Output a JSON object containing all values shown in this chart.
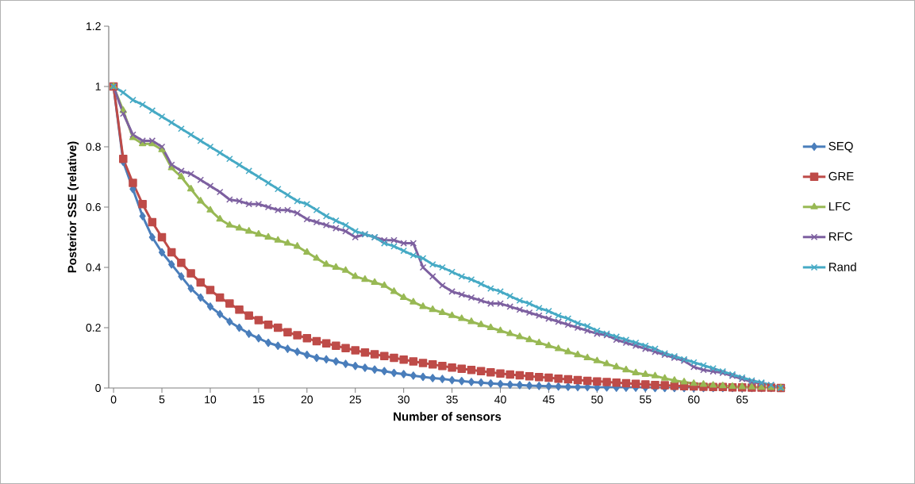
{
  "chart_data": {
    "type": "line",
    "xlabel": "Number of sensors",
    "ylabel": "Posterior SSE (relative)",
    "x": [
      0,
      1,
      2,
      3,
      4,
      5,
      6,
      7,
      8,
      9,
      10,
      11,
      12,
      13,
      14,
      15,
      16,
      17,
      18,
      19,
      20,
      21,
      22,
      23,
      24,
      25,
      26,
      27,
      28,
      29,
      30,
      31,
      32,
      33,
      34,
      35,
      36,
      37,
      38,
      39,
      40,
      41,
      42,
      43,
      44,
      45,
      46,
      47,
      48,
      49,
      50,
      51,
      52,
      53,
      54,
      55,
      56,
      57,
      58,
      59,
      60,
      61,
      62,
      63,
      64,
      65,
      66,
      67,
      68,
      69
    ],
    "xlim": [
      -0.5,
      69.5
    ],
    "xticks": [
      0,
      5,
      10,
      15,
      20,
      25,
      30,
      35,
      40,
      45,
      50,
      55,
      60,
      65
    ],
    "ylim": [
      0,
      1.2
    ],
    "yticks": [
      0,
      0.2,
      0.4,
      0.6,
      0.8,
      1,
      1.2
    ],
    "grid": false,
    "legend": "right",
    "series": [
      {
        "name": "SEQ",
        "color": "#4a7ebb",
        "marker": "diamond",
        "values": [
          1,
          0.75,
          0.66,
          0.57,
          0.5,
          0.45,
          0.41,
          0.37,
          0.33,
          0.3,
          0.27,
          0.245,
          0.22,
          0.2,
          0.18,
          0.165,
          0.15,
          0.14,
          0.13,
          0.12,
          0.11,
          0.1,
          0.095,
          0.088,
          0.08,
          0.073,
          0.067,
          0.061,
          0.056,
          0.05,
          0.046,
          0.041,
          0.037,
          0.033,
          0.03,
          0.026,
          0.023,
          0.02,
          0.018,
          0.015,
          0.013,
          0.011,
          0.01,
          0.008,
          0.007,
          0.006,
          0.005,
          0.004,
          0.003,
          0.003,
          0.002,
          0.002,
          0.001,
          0.001,
          0.001,
          0.001,
          0,
          0,
          0,
          0,
          0,
          0,
          0,
          0,
          0,
          0,
          0,
          0,
          0,
          0
        ]
      },
      {
        "name": "GRE",
        "color": "#be4b48",
        "marker": "square",
        "values": [
          1,
          0.76,
          0.68,
          0.61,
          0.55,
          0.5,
          0.45,
          0.415,
          0.38,
          0.35,
          0.325,
          0.3,
          0.28,
          0.26,
          0.24,
          0.225,
          0.21,
          0.2,
          0.185,
          0.175,
          0.165,
          0.155,
          0.148,
          0.14,
          0.132,
          0.125,
          0.118,
          0.112,
          0.106,
          0.1,
          0.094,
          0.088,
          0.083,
          0.078,
          0.073,
          0.068,
          0.064,
          0.06,
          0.056,
          0.052,
          0.048,
          0.045,
          0.042,
          0.039,
          0.036,
          0.034,
          0.031,
          0.029,
          0.026,
          0.024,
          0.022,
          0.02,
          0.018,
          0.016,
          0.014,
          0.012,
          0.01,
          0.009,
          0.007,
          0.006,
          0.005,
          0.004,
          0.003,
          0.003,
          0.002,
          0.002,
          0.001,
          0.001,
          0.001,
          0
        ]
      },
      {
        "name": "LFC",
        "color": "#98b954",
        "marker": "triangle",
        "values": [
          1,
          0.92,
          0.83,
          0.81,
          0.81,
          0.79,
          0.73,
          0.7,
          0.66,
          0.62,
          0.59,
          0.56,
          0.54,
          0.53,
          0.52,
          0.51,
          0.5,
          0.49,
          0.48,
          0.47,
          0.45,
          0.43,
          0.41,
          0.4,
          0.39,
          0.37,
          0.36,
          0.35,
          0.34,
          0.32,
          0.3,
          0.285,
          0.27,
          0.26,
          0.25,
          0.24,
          0.23,
          0.22,
          0.21,
          0.2,
          0.19,
          0.18,
          0.17,
          0.16,
          0.15,
          0.14,
          0.13,
          0.12,
          0.11,
          0.1,
          0.09,
          0.08,
          0.07,
          0.06,
          0.05,
          0.045,
          0.04,
          0.032,
          0.025,
          0.02,
          0.015,
          0.012,
          0.009,
          0.007,
          0.005,
          0.004,
          0.003,
          0.002,
          0.001,
          0
        ]
      },
      {
        "name": "RFC",
        "color": "#7d60a0",
        "marker": "cross",
        "values": [
          1,
          0.91,
          0.84,
          0.82,
          0.82,
          0.8,
          0.74,
          0.72,
          0.71,
          0.69,
          0.67,
          0.65,
          0.625,
          0.62,
          0.61,
          0.61,
          0.6,
          0.59,
          0.59,
          0.58,
          0.56,
          0.55,
          0.54,
          0.53,
          0.52,
          0.5,
          0.51,
          0.5,
          0.49,
          0.49,
          0.48,
          0.48,
          0.4,
          0.37,
          0.34,
          0.32,
          0.31,
          0.3,
          0.29,
          0.28,
          0.28,
          0.27,
          0.26,
          0.25,
          0.24,
          0.23,
          0.22,
          0.21,
          0.2,
          0.19,
          0.18,
          0.175,
          0.16,
          0.15,
          0.14,
          0.13,
          0.12,
          0.11,
          0.1,
          0.09,
          0.07,
          0.06,
          0.055,
          0.05,
          0.04,
          0.03,
          0.02,
          0.015,
          0.01,
          0
        ]
      },
      {
        "name": "Rand",
        "color": "#46aac5",
        "marker": "cross",
        "values": [
          1,
          0.98,
          0.955,
          0.94,
          0.92,
          0.9,
          0.88,
          0.86,
          0.84,
          0.82,
          0.8,
          0.78,
          0.76,
          0.74,
          0.72,
          0.7,
          0.68,
          0.66,
          0.64,
          0.62,
          0.61,
          0.59,
          0.57,
          0.555,
          0.54,
          0.52,
          0.51,
          0.5,
          0.48,
          0.47,
          0.455,
          0.44,
          0.43,
          0.41,
          0.4,
          0.385,
          0.37,
          0.36,
          0.345,
          0.33,
          0.32,
          0.305,
          0.29,
          0.28,
          0.265,
          0.255,
          0.24,
          0.23,
          0.215,
          0.205,
          0.19,
          0.18,
          0.17,
          0.16,
          0.15,
          0.14,
          0.13,
          0.115,
          0.105,
          0.095,
          0.085,
          0.075,
          0.065,
          0.055,
          0.045,
          0.035,
          0.025,
          0.018,
          0.01,
          0
        ]
      }
    ]
  }
}
